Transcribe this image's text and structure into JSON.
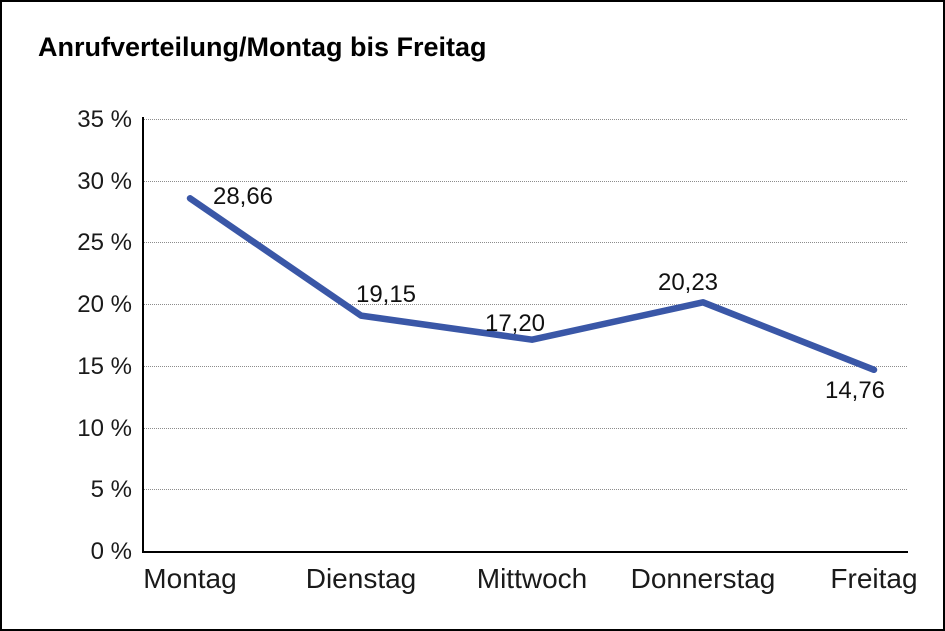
{
  "chart_data": {
    "type": "line",
    "title": "Anrufverteilung/Montag bis Freitag",
    "categories": [
      "Montag",
      "Dienstag",
      "Mittwoch",
      "Donnerstag",
      "Freitag"
    ],
    "values": [
      28.66,
      19.15,
      17.2,
      20.23,
      14.76
    ],
    "point_labels": [
      "28,66",
      "19,15",
      "17,20",
      "20,23",
      "14,76"
    ],
    "y_ticks": {
      "values": [
        35,
        30,
        25,
        20,
        15,
        10,
        5,
        0
      ],
      "labels": [
        "35 %",
        "30 %",
        "25 %",
        "20 %",
        "15 %",
        "10 %",
        "5 %",
        "0 %"
      ]
    },
    "ylim": [
      0,
      35
    ],
    "xlabel": "",
    "ylabel": "",
    "grid": "horizontal-dotted",
    "legend_position": "none",
    "line_color": "#3A57A7",
    "axis_color": "#000000",
    "background": "#FFFFFF",
    "border_color": "#000000"
  }
}
